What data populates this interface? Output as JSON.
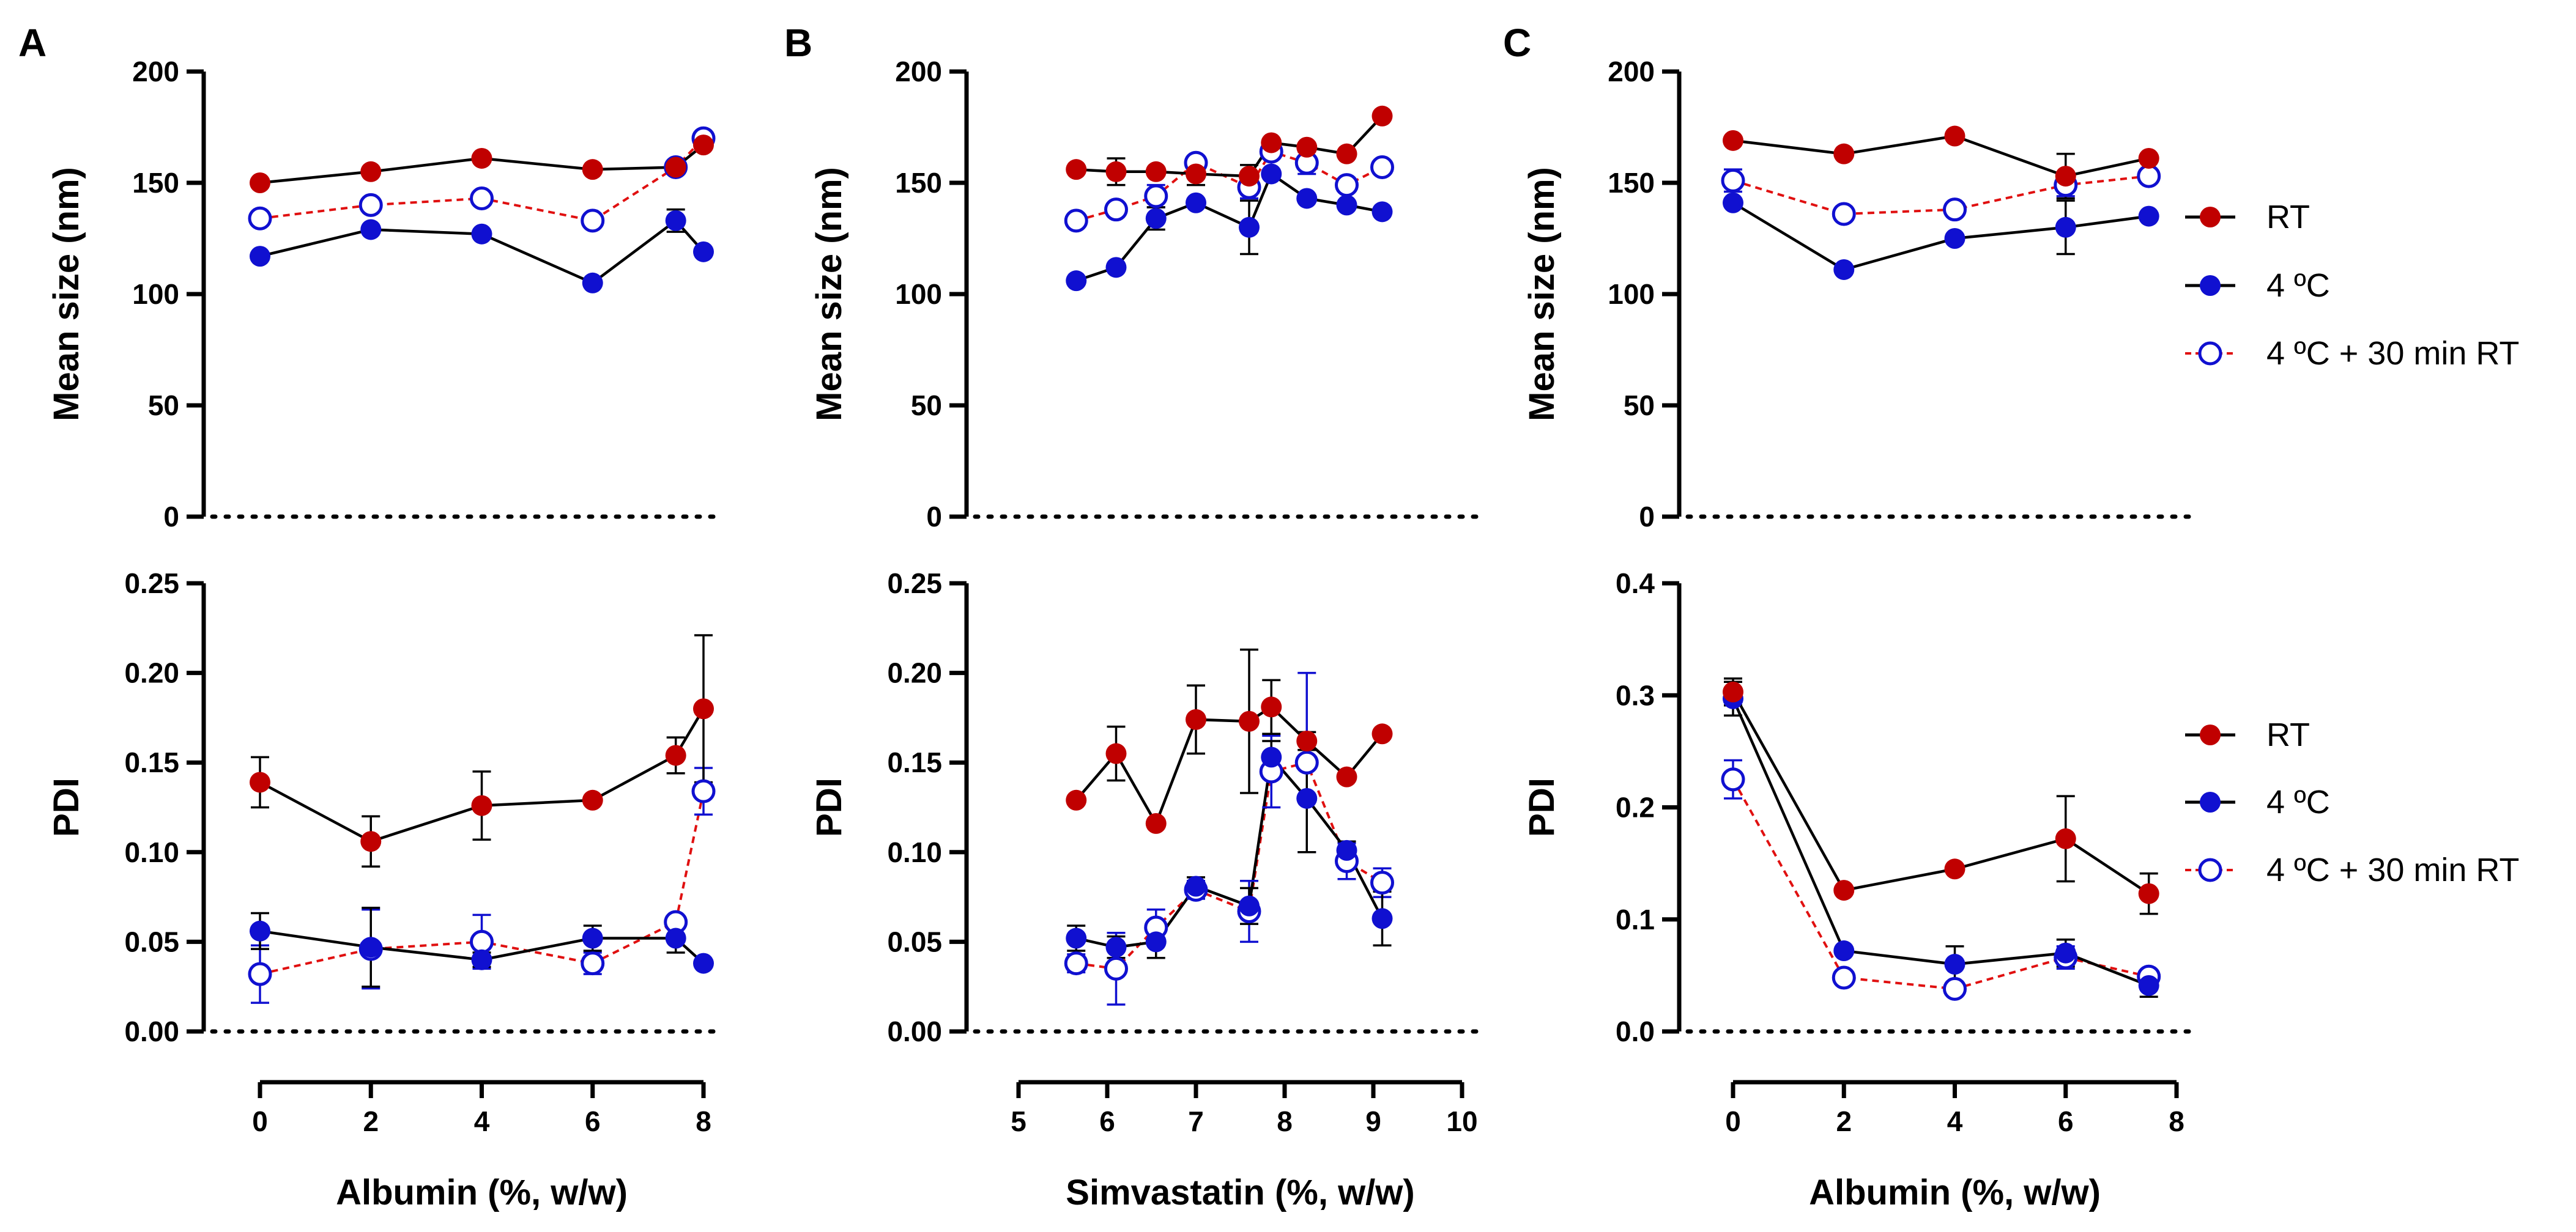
{
  "figure": {
    "panel_labels": [
      "A",
      "B",
      "C"
    ],
    "legend": [
      {
        "label": "RT",
        "series": "rt"
      },
      {
        "label": "4 ºC",
        "series": "c4"
      },
      {
        "label": "4 ºC + 30 min RT",
        "series": "c4rt"
      }
    ],
    "colors": {
      "rt": "#c00000",
      "c4": "#1010d0",
      "c4rt": "#1010d0",
      "rt_line": "#000000",
      "c4_line": "#000000",
      "c4rt_line": "#e01010"
    }
  },
  "chart_data": [
    {
      "id": "A-top",
      "type": "line",
      "panel": "A",
      "ylabel": "Mean size (nm)",
      "xlabel": "",
      "xlim": [
        0,
        8
      ],
      "ylim": [
        0,
        200
      ],
      "yticks": [
        "0",
        "50",
        "100",
        "150",
        "200"
      ],
      "x": [
        0,
        2,
        4,
        6,
        7.5,
        8
      ],
      "series": [
        {
          "name": "RT",
          "key": "rt",
          "values": [
            150,
            155,
            161,
            156,
            157,
            167
          ],
          "err": [
            0,
            0,
            0,
            0,
            0,
            0
          ]
        },
        {
          "name": "4 ºC",
          "key": "c4",
          "values": [
            117,
            129,
            127,
            105,
            133,
            119
          ],
          "err": [
            0,
            0,
            0,
            0,
            5,
            0
          ]
        },
        {
          "name": "4 ºC + 30 min RT",
          "key": "c4rt",
          "values": [
            134,
            140,
            143,
            133,
            157,
            170
          ],
          "err": [
            0,
            0,
            0,
            0,
            0,
            0
          ]
        }
      ]
    },
    {
      "id": "A-bottom",
      "type": "line",
      "panel": "A",
      "ylabel": "PDI",
      "xlabel": "Albumin (%, w/w)",
      "xlim": [
        0,
        8
      ],
      "ylim": [
        0,
        0.25
      ],
      "yticks": [
        "0.00",
        "0.05",
        "0.10",
        "0.15",
        "0.20",
        "0.25"
      ],
      "xticks": [
        "0",
        "2",
        "4",
        "6",
        "8"
      ],
      "x": [
        0,
        2,
        4,
        6,
        7.5,
        8
      ],
      "series": [
        {
          "name": "RT",
          "key": "rt",
          "values": [
            0.139,
            0.106,
            0.126,
            0.129,
            0.154,
            0.18
          ],
          "err": [
            0.014,
            0.014,
            0.019,
            0,
            0.01,
            0.041
          ]
        },
        {
          "name": "4 ºC",
          "key": "c4",
          "values": [
            0.056,
            0.047,
            0.04,
            0.052,
            0.052,
            0.038
          ],
          "err": [
            0.01,
            0.022,
            0.004,
            0.007,
            0.008,
            0
          ]
        },
        {
          "name": "4 ºC + 30 min RT",
          "key": "c4rt",
          "values": [
            0.032,
            0.046,
            0.05,
            0.038,
            0.061,
            0.134
          ],
          "err": [
            0.016,
            0.022,
            0.015,
            0.006,
            0,
            0.013
          ]
        }
      ]
    },
    {
      "id": "B-top",
      "type": "line",
      "panel": "B",
      "ylabel": "Mean size (nm)",
      "xlabel": "",
      "xlim": [
        5,
        10
      ],
      "ylim": [
        0,
        200
      ],
      "yticks": [
        "0",
        "50",
        "100",
        "150",
        "200"
      ],
      "x": [
        5.65,
        6.1,
        6.55,
        7.0,
        7.6,
        7.85,
        8.25,
        8.7,
        9.1
      ],
      "series": [
        {
          "name": "RT",
          "key": "rt",
          "values": [
            156,
            155,
            155,
            154,
            153,
            168,
            166,
            163,
            180
          ],
          "err": [
            0,
            6,
            0,
            5,
            5,
            0,
            0,
            0,
            0
          ]
        },
        {
          "name": "4 ºC",
          "key": "c4",
          "values": [
            106,
            112,
            134,
            141,
            130,
            154,
            143,
            140,
            137
          ],
          "err": [
            0,
            0,
            5,
            0,
            12,
            0,
            0,
            0,
            0
          ]
        },
        {
          "name": "4 ºC + 30 min RT",
          "key": "c4rt",
          "values": [
            133,
            138,
            144,
            159,
            148,
            164,
            159,
            149,
            157
          ],
          "err": [
            0,
            0,
            5,
            0,
            5,
            0,
            5,
            0,
            0
          ]
        }
      ]
    },
    {
      "id": "B-bottom",
      "type": "line",
      "panel": "B",
      "ylabel": "PDI",
      "xlabel": "Simvastatin (%, w/w)",
      "xlim": [
        5,
        10
      ],
      "ylim": [
        0,
        0.25
      ],
      "yticks": [
        "0.00",
        "0.05",
        "0.10",
        "0.15",
        "0.20",
        "0.25"
      ],
      "xticks": [
        "5",
        "6",
        "7",
        "8",
        "9",
        "10"
      ],
      "x": [
        5.65,
        6.1,
        6.55,
        7.0,
        7.6,
        7.85,
        8.25,
        8.7,
        9.1
      ],
      "series": [
        {
          "name": "RT",
          "key": "rt",
          "values": [
            0.129,
            0.155,
            0.116,
            0.174,
            0.173,
            0.181,
            0.162,
            0.142,
            0.166
          ],
          "err": [
            0,
            0.015,
            0,
            0.019,
            0.04,
            0.015,
            0.005,
            0,
            0
          ]
        },
        {
          "name": "4 ºC",
          "key": "c4",
          "values": [
            0.052,
            0.047,
            0.05,
            0.081,
            0.07,
            0.153,
            0.13,
            0.101,
            0.063
          ],
          "err": [
            0.007,
            0.006,
            0.009,
            0.005,
            0.01,
            0.009,
            0.03,
            0.005,
            0.015
          ]
        },
        {
          "name": "4 ºC + 30 min RT",
          "key": "c4rt",
          "values": [
            0.038,
            0.035,
            0.058,
            0.079,
            0.067,
            0.145,
            0.15,
            0.095,
            0.083
          ],
          "err": [
            0.005,
            0.02,
            0.01,
            0.005,
            0.017,
            0.02,
            0.05,
            0.01,
            0.008
          ]
        }
      ]
    },
    {
      "id": "C-top",
      "type": "line",
      "panel": "C",
      "ylabel": "Mean size (nm)",
      "xlabel": "",
      "xlim": [
        0,
        8
      ],
      "ylim": [
        0,
        200
      ],
      "yticks": [
        "0",
        "50",
        "100",
        "150",
        "200"
      ],
      "x": [
        0,
        2,
        4,
        6,
        7.5
      ],
      "series": [
        {
          "name": "RT",
          "key": "rt",
          "values": [
            169,
            163,
            171,
            153,
            161
          ],
          "err": [
            0,
            0,
            0,
            10,
            0
          ]
        },
        {
          "name": "4 ºC",
          "key": "c4",
          "values": [
            141,
            111,
            125,
            130,
            135
          ],
          "err": [
            0,
            0,
            0,
            12,
            0
          ]
        },
        {
          "name": "4 ºC + 30 min RT",
          "key": "c4rt",
          "values": [
            151,
            136,
            138,
            149,
            153
          ],
          "err": [
            5,
            0,
            0,
            5,
            0
          ]
        }
      ]
    },
    {
      "id": "C-bottom",
      "type": "line",
      "panel": "C",
      "ylabel": "PDI",
      "xlabel": "Albumin (%, w/w)",
      "xlim": [
        0,
        8
      ],
      "ylim": [
        0,
        0.4
      ],
      "yticks": [
        "0.0",
        "0.1",
        "0.2",
        "0.3",
        "0.4"
      ],
      "xticks": [
        "0",
        "2",
        "4",
        "6",
        "8"
      ],
      "x": [
        0,
        2,
        4,
        6,
        7.5
      ],
      "series": [
        {
          "name": "RT",
          "key": "rt",
          "values": [
            0.303,
            0.126,
            0.145,
            0.172,
            0.123
          ],
          "err": [
            0.012,
            0,
            0,
            0.038,
            0.018
          ]
        },
        {
          "name": "4 ºC",
          "key": "c4",
          "values": [
            0.297,
            0.072,
            0.06,
            0.07,
            0.041
          ],
          "err": [
            0.015,
            0,
            0.016,
            0.012,
            0.01
          ]
        },
        {
          "name": "4 ºC + 30 min RT",
          "key": "c4rt",
          "values": [
            0.225,
            0.048,
            0.038,
            0.066,
            0.049
          ],
          "err": [
            0.017,
            0,
            0,
            0.01,
            0
          ]
        }
      ]
    }
  ]
}
